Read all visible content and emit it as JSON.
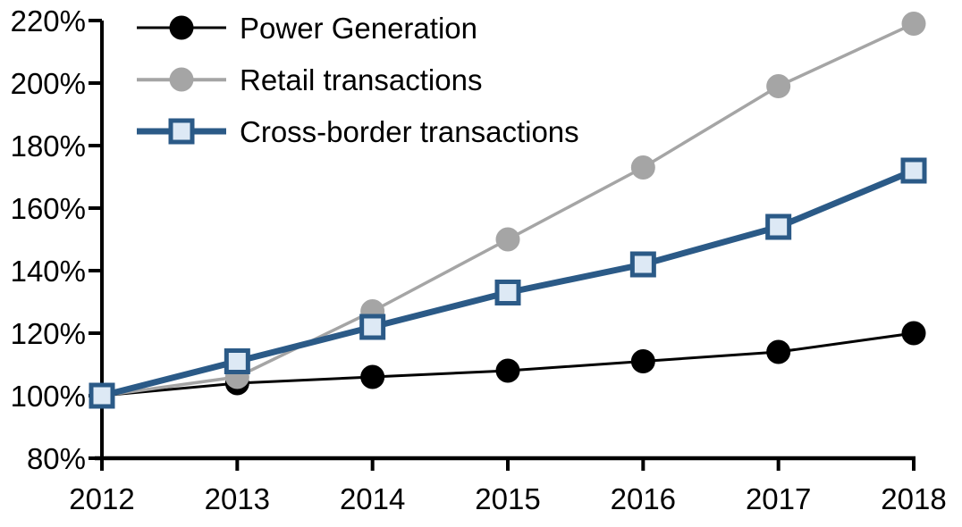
{
  "chart_data": {
    "type": "line",
    "title": "",
    "x": [
      "2012",
      "2013",
      "2014",
      "2015",
      "2016",
      "2017",
      "2018"
    ],
    "series": [
      {
        "name": "Power Generation",
        "values": [
          100,
          104,
          106,
          108,
          111,
          114,
          120
        ],
        "color": "#000000",
        "marker": "circle",
        "marker_fill": "#000000",
        "line_width": 3
      },
      {
        "name": "Retail transactions",
        "values": [
          100,
          106,
          127,
          150,
          173,
          199,
          219
        ],
        "color": "#a5a5a5",
        "marker": "circle",
        "marker_fill": "#a5a5a5",
        "line_width": 3.5
      },
      {
        "name": "Cross-border transactions",
        "values": [
          100,
          111,
          122,
          133,
          142,
          154,
          172
        ],
        "color": "#2b5a87",
        "marker": "square",
        "marker_fill": "#dde9f5",
        "line_width": 7
      }
    ],
    "ylim": [
      80,
      220
    ],
    "ytick_step": 20,
    "ytick_format": "percent",
    "xlabel": "",
    "ylabel": "",
    "grid": false,
    "legend_position": "top-left",
    "axis_color": "#000000"
  }
}
